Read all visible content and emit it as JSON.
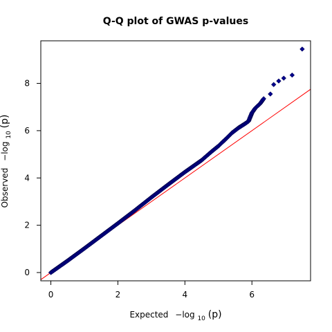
{
  "chart_data": {
    "type": "scatter",
    "title": "Q-Q plot of GWAS p-values",
    "xlabel": {
      "prefix": "Expected",
      "expr": "−log",
      "sub": "10",
      "arg": "(p)"
    },
    "ylabel": {
      "prefix": "Observed",
      "expr": "−log",
      "sub": "10",
      "arg": "(p)"
    },
    "xlim": [
      -0.3,
      7.75
    ],
    "ylim": [
      -0.35,
      9.8
    ],
    "xticks": [
      0,
      2,
      4,
      6
    ],
    "yticks": [
      0,
      2,
      4,
      6,
      8
    ],
    "grid": false,
    "reference_line": {
      "slope": 1,
      "intercept": 0,
      "color": "#ff0000"
    },
    "point_color": "#00008b",
    "marker": "diamond",
    "curve": [
      [
        0.0,
        0.0
      ],
      [
        0.5,
        0.5
      ],
      [
        1.0,
        1.02
      ],
      [
        1.5,
        1.55
      ],
      [
        2.0,
        2.08
      ],
      [
        2.5,
        2.62
      ],
      [
        3.0,
        3.18
      ],
      [
        3.5,
        3.72
      ],
      [
        4.0,
        4.25
      ],
      [
        4.5,
        4.75
      ],
      [
        4.8,
        5.12
      ],
      [
        5.0,
        5.35
      ],
      [
        5.2,
        5.62
      ],
      [
        5.4,
        5.9
      ],
      [
        5.6,
        6.12
      ],
      [
        5.8,
        6.3
      ],
      [
        5.9,
        6.4
      ],
      [
        6.0,
        6.75
      ],
      [
        6.1,
        6.95
      ],
      [
        6.25,
        7.15
      ],
      [
        6.35,
        7.35
      ]
    ],
    "outliers": [
      [
        6.55,
        7.55
      ],
      [
        6.65,
        7.95
      ],
      [
        6.8,
        8.1
      ],
      [
        6.95,
        8.22
      ],
      [
        7.2,
        8.35
      ],
      [
        7.5,
        9.45
      ]
    ]
  }
}
